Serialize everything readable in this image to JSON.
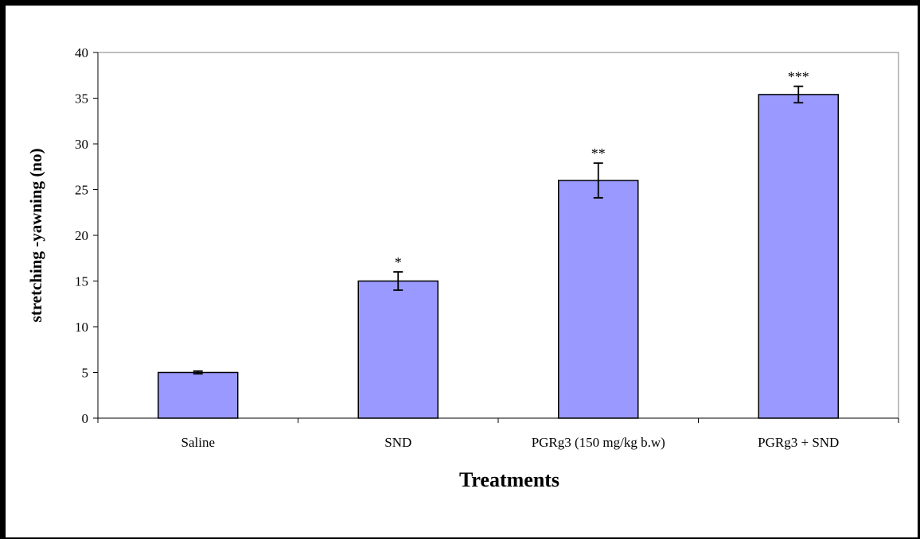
{
  "chart_data": {
    "type": "bar",
    "title": "",
    "xlabel": "Treatments",
    "ylabel": "stretching -yawning (no)",
    "categories": [
      "Saline",
      "SND",
      "PGRg3 (150 mg/kg b.w)",
      "PGRg3 + SND"
    ],
    "values": [
      5,
      15,
      26,
      35.4
    ],
    "errors": [
      0.15,
      1.0,
      1.9,
      0.9
    ],
    "significance": [
      "",
      "*",
      "**",
      "***"
    ],
    "ylim": [
      0,
      40
    ],
    "yticks": [
      0,
      5,
      10,
      15,
      20,
      25,
      30,
      35,
      40
    ],
    "grid": false,
    "legend": "none",
    "colors": {
      "bar_fill": "#9999ff",
      "bar_stroke": "#000000",
      "axis": "#000000",
      "plot_border": "#808080"
    }
  }
}
